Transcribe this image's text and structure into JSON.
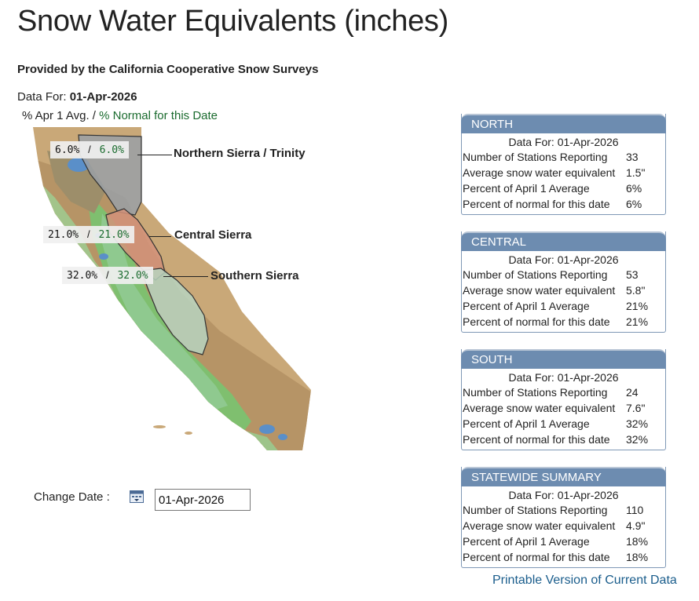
{
  "page": {
    "title": "Snow Water Equivalents (inches)",
    "provider": "Provided by the California Cooperative Snow Surveys",
    "data_for_label": "Data For:",
    "data_for_date": "01-Apr-2026",
    "legend_avg": "% Apr 1 Avg. /",
    "legend_normal": "% Normal for this Date"
  },
  "map": {
    "regions": [
      {
        "name": "Northern Sierra / Trinity",
        "apr1": "6.0%",
        "sep": "/",
        "normal": "6.0%"
      },
      {
        "name": "Central Sierra",
        "apr1": "21.0%",
        "sep": "/",
        "normal": "21.0%"
      },
      {
        "name": "Southern Sierra",
        "apr1": "32.0%",
        "sep": "/",
        "normal": "32.0%"
      }
    ]
  },
  "date_picker": {
    "label": "Change Date :",
    "value": "01-Apr-2026"
  },
  "panels": [
    {
      "title": "NORTH",
      "data_for": "Data For: 01-Apr-2026",
      "rows": [
        {
          "label": "Number of Stations Reporting",
          "value": "33"
        },
        {
          "label": "Average snow water equivalent",
          "value": "1.5\""
        },
        {
          "label": "Percent of April 1 Average",
          "value": "6%"
        },
        {
          "label": "Percent of normal for this date",
          "value": "6%"
        }
      ]
    },
    {
      "title": "CENTRAL",
      "data_for": "Data For: 01-Apr-2026",
      "rows": [
        {
          "label": "Number of Stations Reporting",
          "value": "53"
        },
        {
          "label": "Average snow water equivalent",
          "value": "5.8\""
        },
        {
          "label": "Percent of April 1 Average",
          "value": "21%"
        },
        {
          "label": "Percent of normal for this date",
          "value": "21%"
        }
      ]
    },
    {
      "title": "SOUTH",
      "data_for": "Data For: 01-Apr-2026",
      "rows": [
        {
          "label": "Number of Stations Reporting",
          "value": "24"
        },
        {
          "label": "Average snow water equivalent",
          "value": "7.6\""
        },
        {
          "label": "Percent of April 1 Average",
          "value": "32%"
        },
        {
          "label": "Percent of normal for this date",
          "value": "32%"
        }
      ]
    },
    {
      "title": "STATEWIDE SUMMARY",
      "data_for": "Data For: 01-Apr-2026",
      "rows": [
        {
          "label": "Number of Stations Reporting",
          "value": "110"
        },
        {
          "label": "Average snow water equivalent",
          "value": "4.9\""
        },
        {
          "label": "Percent of April 1 Average",
          "value": "18%"
        },
        {
          "label": "Percent of normal for this date",
          "value": "18%"
        }
      ]
    }
  ],
  "links": {
    "printable": "Printable Version of Current Data"
  },
  "icons": {
    "calendar": "calendar-icon"
  },
  "colors": {
    "panel_header": "#6d8cb0",
    "link": "#1a5d8c",
    "normal_green": "#1a6b2e",
    "north_region": "#9aa0a6",
    "central_region": "#d4927a",
    "south_region": "#b7d3c0"
  }
}
